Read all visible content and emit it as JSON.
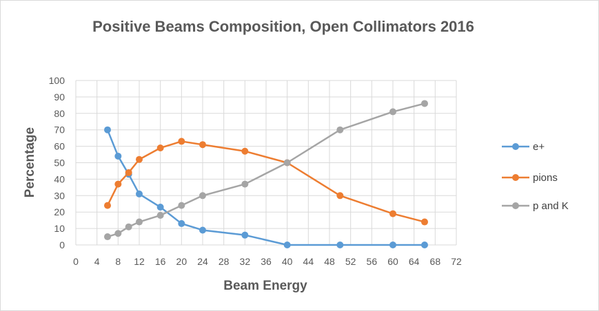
{
  "chart_data": {
    "type": "line",
    "title": "Positive Beams Composition, Open Collimators 2016",
    "xlabel": "Beam Energy",
    "ylabel": "Percentage",
    "xlim": [
      0,
      72
    ],
    "ylim": [
      0,
      100
    ],
    "xticks": [
      "0",
      "4",
      "8",
      "12",
      "16",
      "20",
      "24",
      "28",
      "32",
      "36",
      "40",
      "44",
      "48",
      "52",
      "56",
      "60",
      "64",
      "68",
      "72"
    ],
    "yticks": [
      "0",
      "10",
      "20",
      "30",
      "40",
      "50",
      "60",
      "70",
      "80",
      "90",
      "100"
    ],
    "grid": true,
    "legend_position": "right",
    "series": [
      {
        "name": "e+",
        "color": "#5b9bd5",
        "x": [
          6,
          8,
          10,
          12,
          16,
          20,
          24,
          32,
          40,
          50,
          60,
          66
        ],
        "y": [
          70,
          54,
          43,
          31,
          23,
          13,
          9,
          6,
          0,
          0,
          0,
          0
        ]
      },
      {
        "name": "pions",
        "color": "#ed7d31",
        "x": [
          6,
          8,
          10,
          12,
          16,
          20,
          24,
          32,
          40,
          50,
          60,
          66
        ],
        "y": [
          24,
          37,
          44,
          52,
          59,
          63,
          61,
          57,
          50,
          30,
          19,
          14
        ]
      },
      {
        "name": "p and K",
        "color": "#a5a5a5",
        "x": [
          6,
          8,
          10,
          12,
          16,
          20,
          24,
          32,
          40,
          50,
          60,
          66
        ],
        "y": [
          5,
          7,
          11,
          14,
          18,
          24,
          30,
          37,
          50,
          70,
          81,
          86
        ]
      }
    ]
  }
}
